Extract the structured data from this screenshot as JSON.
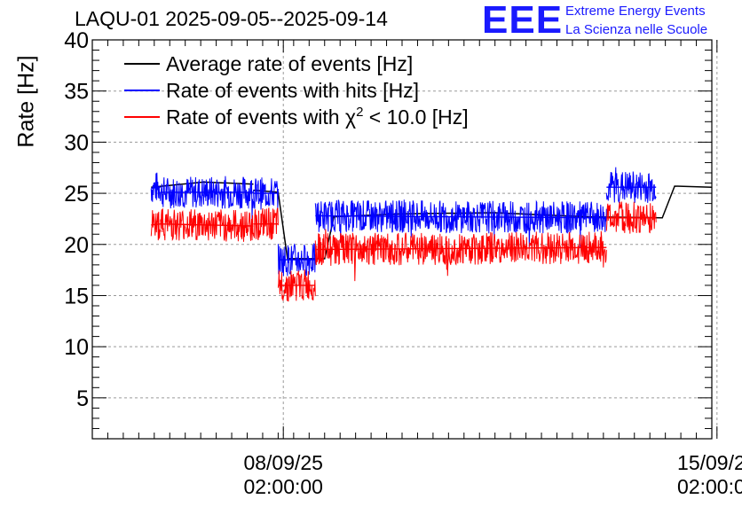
{
  "header": {
    "title": "LAQU-01 2025-09-05--2025-09-14",
    "logo_text": "EEE",
    "logo_line1": "Extreme Energy Events",
    "logo_line2": "La Scienza nelle Scuole"
  },
  "colors": {
    "avg": "#000000",
    "hits": "#0000ff",
    "chi2": "#ff0000",
    "logo": "#1a1aff"
  },
  "chart_data": {
    "type": "line",
    "title": "LAQU-01 2025-09-05--2025-09-14",
    "ylabel": "Rate [Hz]",
    "xlabel": "",
    "ylim": [
      1,
      40
    ],
    "yticks": [
      5,
      10,
      15,
      20,
      25,
      30,
      35,
      40
    ],
    "x_unit": "days since 2025-09-05 00:00",
    "xlim": [
      0,
      10
    ],
    "xticks": [
      {
        "date": "08/09/25",
        "time": "02:00:00",
        "x": 3.0833
      },
      {
        "date": "15/09/25",
        "time": "02:00:00",
        "x": 10.0833
      }
    ],
    "grid": true,
    "legend_position": "top-left",
    "series": [
      {
        "name": "Average rate of events [Hz]",
        "color": "#000000",
        "segments": [
          {
            "x": [
              0.95,
              1.8,
              2.6,
              2.6
            ],
            "y": [
              25.6,
              26.1,
              25.9,
              25.9
            ]
          },
          {
            "x": [
              2.6,
              3.0,
              3.15,
              3.75,
              3.9,
              5.0,
              6.5,
              8.0,
              9.2,
              9.4,
              10.0
            ],
            "y": [
              25.3,
              25.1,
              18.6,
              18.6,
              22.7,
              23.0,
              23.1,
              22.7,
              22.6,
              25.7,
              25.6
            ]
          }
        ]
      },
      {
        "name": "Rate of events with hits [Hz]",
        "color": "#0000ff",
        "segments": [
          {
            "x": [
              0.95,
              1.1
            ],
            "y": [
              25.5,
              25.6
            ]
          },
          {
            "x": [
              1.1,
              2.6
            ],
            "y": [
              25.1,
              25.1
            ]
          },
          {
            "x": [
              2.6,
              3.0
            ],
            "y": [
              25.0,
              25.0
            ]
          },
          {
            "x": [
              3.0,
              3.6
            ],
            "y": [
              18.5,
              18.5
            ]
          },
          {
            "x": [
              3.6,
              8.3
            ],
            "y": [
              22.8,
              22.6
            ]
          },
          {
            "x": [
              8.3,
              9.1
            ],
            "y": [
              25.6,
              25.6
            ]
          }
        ]
      },
      {
        "name": "Rate of events with χ2 < 10.0 [Hz]",
        "color": "#ff0000",
        "segments": [
          {
            "x": [
              0.95,
              1.1
            ],
            "y": [
              21.9,
              22.0
            ]
          },
          {
            "x": [
              1.1,
              2.6
            ],
            "y": [
              22.0,
              21.8
            ]
          },
          {
            "x": [
              2.6,
              3.0
            ],
            "y": [
              22.0,
              22.0
            ]
          },
          {
            "x": [
              3.0,
              3.6
            ],
            "y": [
              16.0,
              16.0
            ]
          },
          {
            "x": [
              3.6,
              8.3
            ],
            "y": [
              19.5,
              19.7
            ]
          },
          {
            "x": [
              8.3,
              9.1
            ],
            "y": [
              22.6,
              22.6
            ]
          }
        ]
      }
    ]
  },
  "legend": [
    {
      "label_pre": "Rate of events with ",
      "label_sym": "χ",
      "label_sup": "2",
      "label_post": " < 10.0 [Hz]"
    }
  ]
}
